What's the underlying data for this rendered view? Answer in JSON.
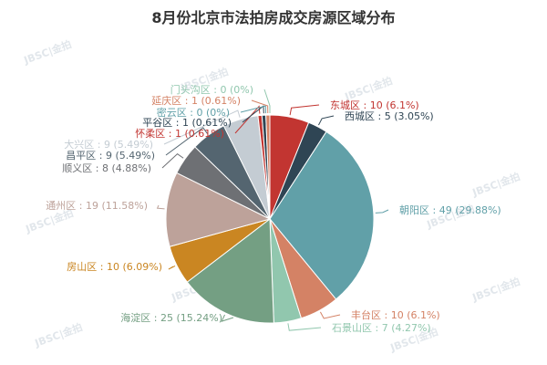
{
  "chart_data": {
    "type": "pie",
    "title": "8月份北京市法拍房成交房源区域分布",
    "watermark": "JBSC|金拍",
    "slices": [
      {
        "name": "东城区",
        "label": "东城区 : 10 (6.1%)",
        "value": 10,
        "percent": 6.1,
        "color": "#c23531"
      },
      {
        "name": "西城区",
        "label": "西城区 : 5 (3.05%)",
        "value": 5,
        "percent": 3.05,
        "color": "#2f4554"
      },
      {
        "name": "朝阳区",
        "label": "朝阳区 : 49 (29.88%)",
        "value": 49,
        "percent": 29.88,
        "color": "#61a0a8"
      },
      {
        "name": "丰台区",
        "label": "丰台区 : 10 (6.1%)",
        "value": 10,
        "percent": 6.1,
        "color": "#d48265"
      },
      {
        "name": "石景山区",
        "label": "石景山区 : 7 (4.27%)",
        "value": 7,
        "percent": 4.27,
        "color": "#91c7ae"
      },
      {
        "name": "海淀区",
        "label": "海淀区 : 25 (15.24%)",
        "value": 25,
        "percent": 15.24,
        "color": "#749f83"
      },
      {
        "name": "房山区",
        "label": "房山区 : 10 (6.09%)",
        "value": 10,
        "percent": 6.09,
        "color": "#ca8622"
      },
      {
        "name": "通州区",
        "label": "通州区 : 19 (11.58%)",
        "value": 19,
        "percent": 11.58,
        "color": "#bda29a"
      },
      {
        "name": "顺义区",
        "label": "顺义区 : 8 (4.88%)",
        "value": 8,
        "percent": 4.88,
        "color": "#6e7074"
      },
      {
        "name": "昌平区",
        "label": "昌平区 : 9 (5.49%)",
        "value": 9,
        "percent": 5.49,
        "color": "#546570"
      },
      {
        "name": "大兴区",
        "label": "大兴区 : 9 (5.49%)",
        "value": 9,
        "percent": 5.49,
        "color": "#c4ccd3"
      },
      {
        "name": "怀柔区",
        "label": "怀柔区 : 1 (0.61%)",
        "value": 1,
        "percent": 0.61,
        "color": "#c23531"
      },
      {
        "name": "平谷区",
        "label": "平谷区 : 1 (0.61%)",
        "value": 1,
        "percent": 0.61,
        "color": "#2f4554"
      },
      {
        "name": "密云区",
        "label": "密云区 : 0 (0%)",
        "value": 0,
        "percent": 0,
        "color": "#61a0a8"
      },
      {
        "name": "延庆区",
        "label": "延庆区 : 1 (0.61%)",
        "value": 1,
        "percent": 0.61,
        "color": "#d48265"
      },
      {
        "name": "门头沟区",
        "label": "门头沟区 : 0 (0%)",
        "value": 0,
        "percent": 0,
        "color": "#91c7ae"
      }
    ]
  }
}
